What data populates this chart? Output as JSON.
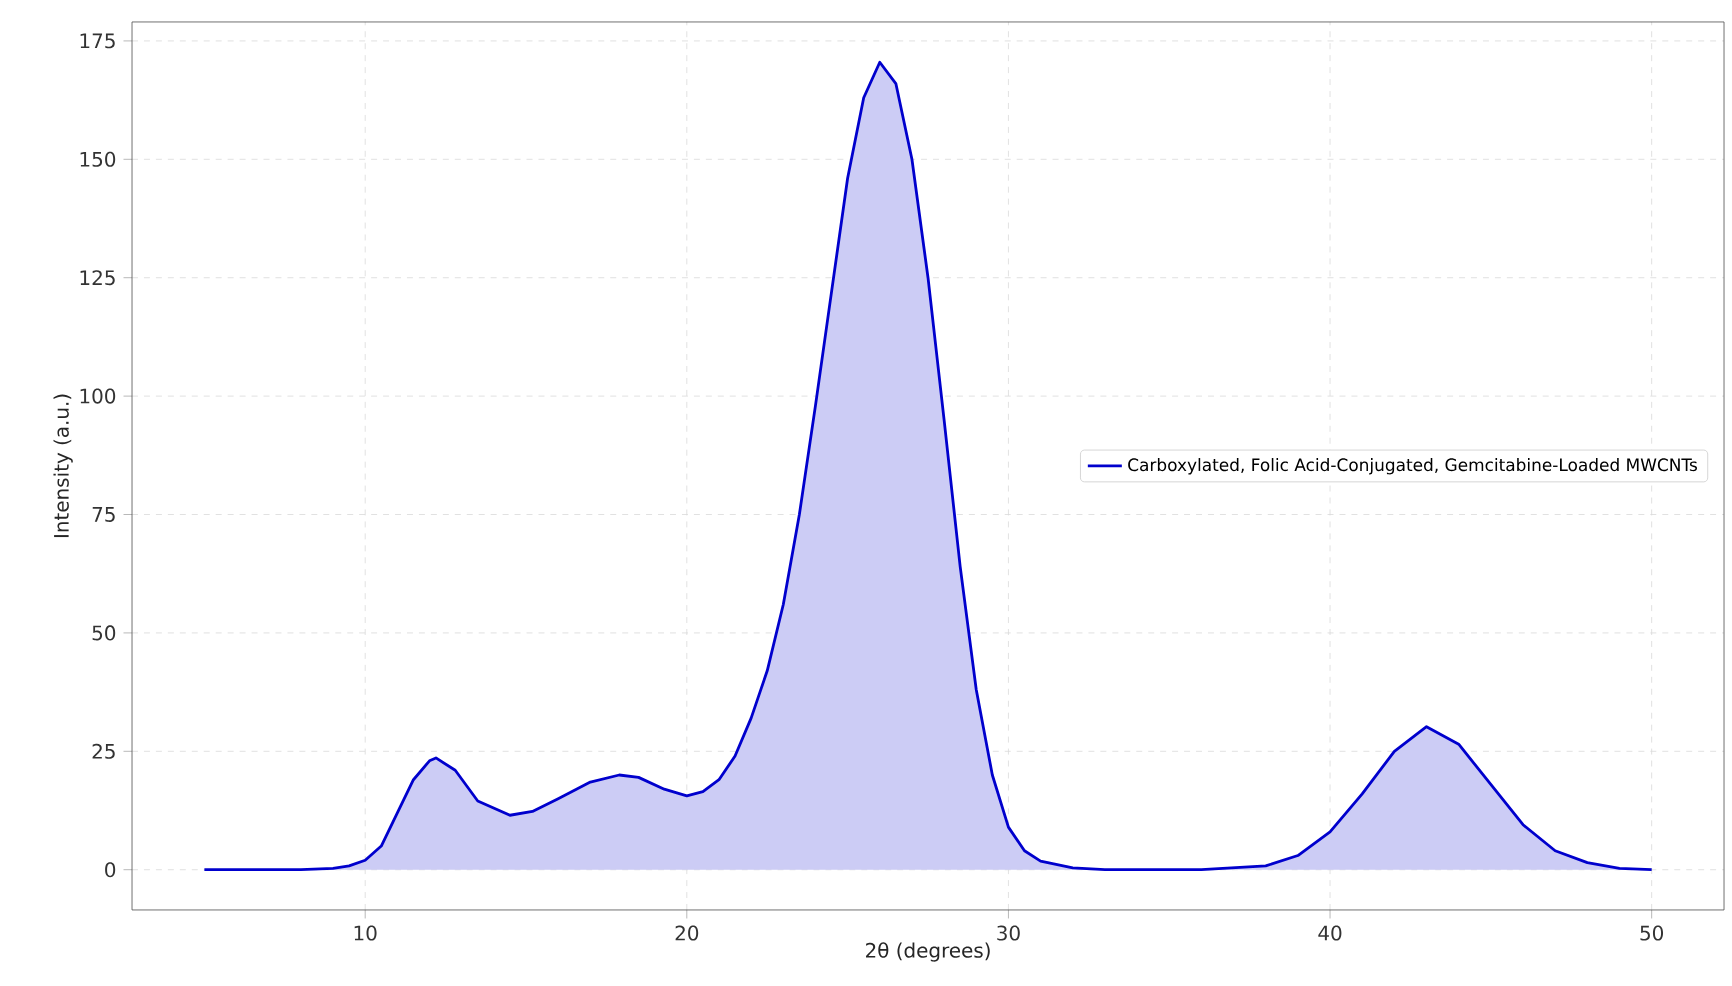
{
  "chart_data": {
    "type": "area",
    "xlabel": "2θ (degrees)",
    "ylabel": "Intensity (a.u.)",
    "xlim": [
      2.75,
      52.25
    ],
    "ylim": [
      -8.5,
      179
    ],
    "xticks": [
      10,
      20,
      30,
      40,
      50
    ],
    "yticks": [
      0,
      25,
      50,
      75,
      100,
      125,
      150,
      175
    ],
    "grid": true,
    "legend": "right",
    "line_style": "solid",
    "marker": "none",
    "series": [
      {
        "name": "Carboxylated, Folic Acid-Conjugated, Gemcitabine-Loaded MWCNTs",
        "color": "#0000cd",
        "x": [
          5,
          8,
          9,
          9.5,
          10,
          10.5,
          11,
          11.5,
          12,
          12.2,
          12.8,
          13.5,
          14.5,
          15.2,
          16,
          17,
          17.9,
          18.5,
          19.3,
          20,
          20.5,
          21,
          21.5,
          22,
          22.5,
          23,
          23.5,
          24,
          24.5,
          25,
          25.5,
          26,
          26.5,
          27,
          27.5,
          28,
          28.5,
          29,
          29.5,
          30,
          30.5,
          31,
          32,
          33,
          36,
          38,
          39,
          40,
          41,
          42,
          43,
          44,
          45,
          46,
          47,
          48,
          49,
          50
        ],
        "values": [
          0,
          0,
          0.3,
          0.8,
          2,
          5,
          12,
          19,
          23,
          23.6,
          21,
          14.5,
          11.5,
          12.3,
          15,
          18.5,
          20,
          19.5,
          17,
          15.6,
          16.5,
          19,
          24,
          32,
          42,
          56,
          75,
          98,
          122,
          146,
          163,
          170.5,
          166,
          150,
          125,
          95,
          64,
          38,
          20,
          9,
          4,
          1.8,
          0.4,
          0,
          0,
          0.8,
          3,
          8,
          16,
          25,
          30.2,
          26.5,
          18,
          9.5,
          4,
          1.5,
          0.3,
          0
        ]
      }
    ]
  }
}
